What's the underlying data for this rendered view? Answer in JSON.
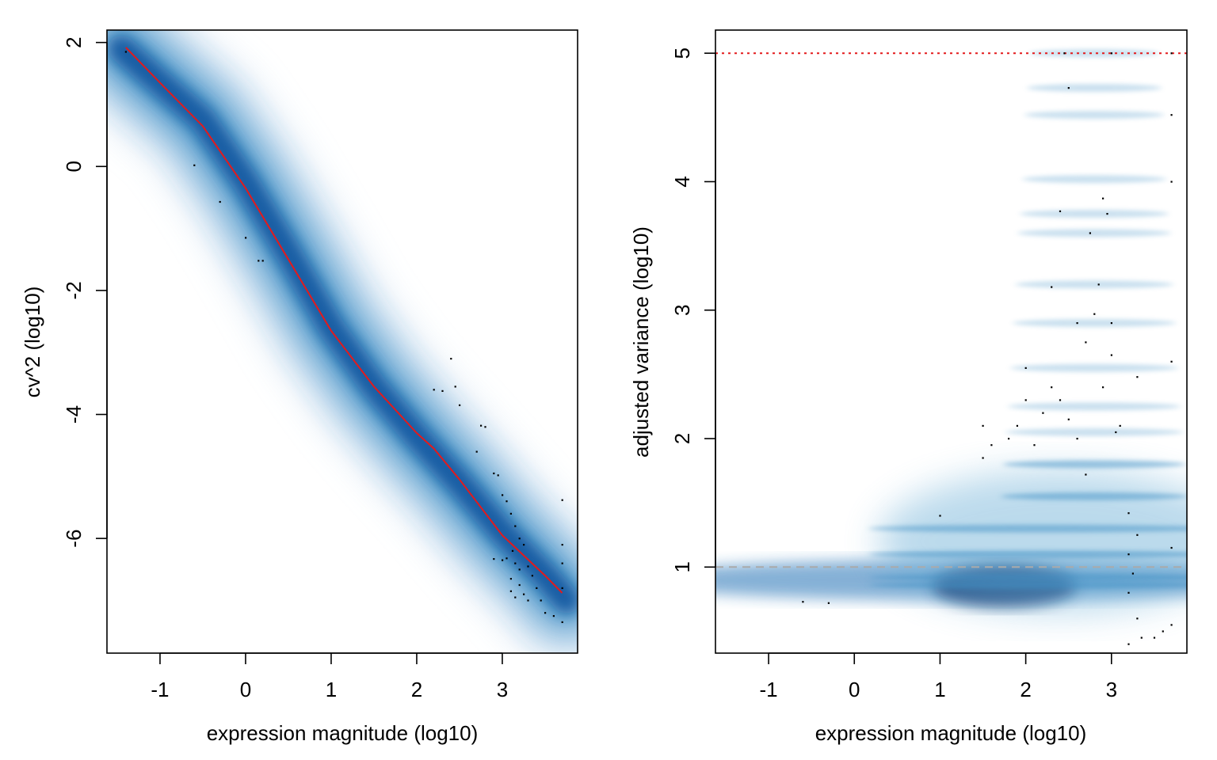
{
  "chart_data": [
    {
      "type": "scatter",
      "title": "",
      "xlabel": "expression magnitude (log10)",
      "ylabel": "cv^2 (log10)",
      "xlim": [
        -1.62,
        3.88
      ],
      "ylim": [
        -7.85,
        2.2
      ],
      "xticks": [
        -1,
        0,
        1,
        2,
        3
      ],
      "xtick_labels": [
        "-1",
        "0",
        "1",
        "2",
        "3"
      ],
      "yticks": [
        -6,
        -4,
        -2,
        0,
        2
      ],
      "ytick_labels": [
        "-6",
        "-4",
        "-2",
        "0",
        "2"
      ],
      "density_color": "#08519c",
      "fit_color": "#e41a1c",
      "density_ridge": [
        [
          -1.45,
          1.9
        ],
        [
          -1.0,
          1.35
        ],
        [
          -0.5,
          0.75
        ],
        [
          0.0,
          -0.25
        ],
        [
          0.5,
          -1.4
        ],
        [
          1.0,
          -2.6
        ],
        [
          1.5,
          -3.55
        ],
        [
          2.0,
          -4.35
        ],
        [
          2.5,
          -5.1
        ],
        [
          3.0,
          -5.9
        ],
        [
          3.5,
          -6.6
        ],
        [
          3.75,
          -7.0
        ]
      ],
      "fit_line": [
        [
          -1.4,
          1.92
        ],
        [
          -1.0,
          1.35
        ],
        [
          -0.5,
          0.65
        ],
        [
          0.0,
          -0.35
        ],
        [
          0.5,
          -1.5
        ],
        [
          1.0,
          -2.65
        ],
        [
          1.5,
          -3.55
        ],
        [
          2.0,
          -4.3
        ],
        [
          2.2,
          -4.55
        ],
        [
          2.5,
          -5.05
        ],
        [
          3.0,
          -5.95
        ],
        [
          3.5,
          -6.6
        ],
        [
          3.7,
          -6.88
        ]
      ],
      "points": [
        [
          -1.4,
          1.85
        ],
        [
          -0.6,
          0.02
        ],
        [
          -0.3,
          -0.57
        ],
        [
          0.0,
          -1.15
        ],
        [
          0.15,
          -1.52
        ],
        [
          0.2,
          -1.52
        ],
        [
          2.4,
          -3.1
        ],
        [
          2.45,
          -3.55
        ],
        [
          2.3,
          -3.62
        ],
        [
          2.5,
          -3.85
        ],
        [
          2.2,
          -3.6
        ],
        [
          2.75,
          -4.18
        ],
        [
          2.8,
          -4.2
        ],
        [
          2.7,
          -4.6
        ],
        [
          2.9,
          -4.95
        ],
        [
          2.95,
          -4.98
        ],
        [
          3.0,
          -5.3
        ],
        [
          3.05,
          -5.4
        ],
        [
          3.1,
          -5.6
        ],
        [
          3.15,
          -5.8
        ],
        [
          3.2,
          -6.0
        ],
        [
          3.25,
          -6.1
        ],
        [
          3.12,
          -6.2
        ],
        [
          2.9,
          -6.33
        ],
        [
          3.0,
          -6.35
        ],
        [
          3.05,
          -6.32
        ],
        [
          3.15,
          -6.4
        ],
        [
          3.2,
          -6.5
        ],
        [
          3.3,
          -6.45
        ],
        [
          3.35,
          -6.6
        ],
        [
          3.1,
          -6.65
        ],
        [
          3.2,
          -6.75
        ],
        [
          3.25,
          -6.9
        ],
        [
          3.3,
          -7.0
        ],
        [
          3.4,
          -6.8
        ],
        [
          3.45,
          -7.0
        ],
        [
          3.5,
          -7.2
        ],
        [
          3.6,
          -7.25
        ],
        [
          3.7,
          -7.35
        ],
        [
          3.7,
          -5.38
        ],
        [
          3.7,
          -6.1
        ],
        [
          3.7,
          -6.4
        ],
        [
          3.7,
          -6.8
        ],
        [
          3.15,
          -6.95
        ],
        [
          3.1,
          -6.85
        ]
      ]
    },
    {
      "type": "scatter",
      "title": "",
      "xlabel": "expression magnitude (log10)",
      "ylabel": "adjusted variance (log10)",
      "xlim": [
        -1.62,
        3.88
      ],
      "ylim": [
        0.33,
        5.18
      ],
      "xticks": [
        -1,
        0,
        1,
        2,
        3
      ],
      "xtick_labels": [
        "-1",
        "0",
        "1",
        "2",
        "3"
      ],
      "yticks": [
        1,
        2,
        3,
        4,
        5
      ],
      "ytick_labels": [
        "1",
        "2",
        "3",
        "4",
        "5"
      ],
      "density_color": "#08519c",
      "hline_reference": 1.0,
      "hline_reference_color": "#aaaaaa",
      "hline_cap": 5.0,
      "hline_cap_color": "#e41a1c",
      "density_bands": [
        0.92,
        0.86,
        1.1,
        1.3,
        1.55,
        1.8,
        2.05,
        2.25,
        2.55,
        2.9,
        3.2,
        3.6,
        3.75,
        4.02,
        4.52,
        4.73,
        5.0
      ],
      "points": [
        [
          -0.6,
          0.73
        ],
        [
          -0.3,
          0.72
        ],
        [
          1.0,
          1.4
        ],
        [
          1.5,
          2.1
        ],
        [
          1.6,
          1.95
        ],
        [
          1.5,
          1.85
        ],
        [
          1.8,
          2.0
        ],
        [
          1.9,
          2.1
        ],
        [
          2.0,
          2.3
        ],
        [
          2.1,
          1.95
        ],
        [
          2.2,
          2.2
        ],
        [
          2.0,
          2.55
        ],
        [
          2.3,
          2.4
        ],
        [
          2.4,
          2.3
        ],
        [
          2.5,
          2.15
        ],
        [
          2.6,
          2.0
        ],
        [
          2.7,
          1.72
        ],
        [
          2.3,
          3.18
        ],
        [
          2.4,
          3.77
        ],
        [
          2.5,
          4.73
        ],
        [
          2.45,
          5.0
        ],
        [
          2.6,
          2.9
        ],
        [
          2.7,
          2.75
        ],
        [
          2.8,
          2.97
        ],
        [
          2.75,
          3.6
        ],
        [
          2.85,
          3.2
        ],
        [
          2.9,
          3.87
        ],
        [
          2.95,
          3.75
        ],
        [
          2.9,
          2.4
        ],
        [
          3.0,
          2.9
        ],
        [
          3.0,
          2.65
        ],
        [
          3.05,
          2.05
        ],
        [
          3.1,
          2.1
        ],
        [
          3.3,
          2.48
        ],
        [
          3.2,
          1.42
        ],
        [
          3.3,
          1.25
        ],
        [
          3.2,
          1.1
        ],
        [
          3.25,
          0.95
        ],
        [
          3.2,
          0.8
        ],
        [
          3.3,
          0.6
        ],
        [
          3.35,
          0.45
        ],
        [
          3.2,
          0.4
        ],
        [
          3.5,
          0.45
        ],
        [
          3.6,
          0.5
        ],
        [
          3.7,
          0.55
        ],
        [
          3.7,
          1.15
        ],
        [
          3.7,
          2.6
        ],
        [
          3.7,
          4.0
        ],
        [
          3.7,
          4.52
        ],
        [
          3.7,
          5.0
        ],
        [
          3.0,
          5.0
        ]
      ]
    }
  ]
}
